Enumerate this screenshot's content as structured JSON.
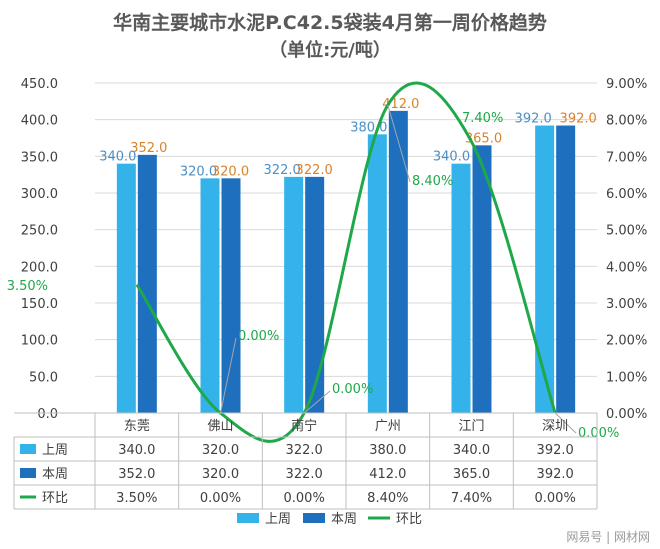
{
  "chart_data": {
    "type": "bar",
    "title": "华南主要城市水泥P.C42.5袋装4月第一周价格趋势",
    "subtitle": "（单位:元/吨）",
    "categories": [
      "东莞",
      "佛山",
      "南宁",
      "广州",
      "江门",
      "深圳"
    ],
    "series": [
      {
        "name": "上周",
        "type": "bar",
        "axis": "left",
        "color": "#33b3ea",
        "values": [
          340.0,
          320.0,
          322.0,
          380.0,
          340.0,
          392.0
        ],
        "labels": [
          "340.0",
          "320.0",
          "322.0",
          "380.0",
          "340.0",
          "392.0"
        ]
      },
      {
        "name": "本周",
        "type": "bar",
        "axis": "left",
        "color": "#1f6fbf",
        "values": [
          352.0,
          320.0,
          322.0,
          412.0,
          365.0,
          392.0
        ],
        "labels": [
          "352.0",
          "320.0",
          "322.0",
          "412.0",
          "365.0",
          "392.0"
        ]
      },
      {
        "name": "环比",
        "type": "line",
        "axis": "right",
        "color": "#1fa84a",
        "values": [
          3.5,
          0.0,
          0.0,
          8.4,
          7.4,
          0.0
        ],
        "labels": [
          "3.50%",
          "0.00%",
          "0.00%",
          "8.40%",
          "7.40%",
          "0.00%"
        ]
      }
    ],
    "y_left": {
      "min": 0,
      "max": 450,
      "ticks": [
        "0.0",
        "50.0",
        "100.0",
        "150.0",
        "200.0",
        "250.0",
        "300.0",
        "350.0",
        "400.0",
        "450.0"
      ]
    },
    "y_right": {
      "min": 0,
      "max": 9,
      "ticks": [
        "0.00%",
        "1.00%",
        "2.00%",
        "3.00%",
        "4.00%",
        "5.00%",
        "6.00%",
        "7.00%",
        "8.00%",
        "9.00%"
      ]
    },
    "grid": true,
    "data_table": true,
    "legend": "bottom"
  },
  "watermark": {
    "text": "网易号 | 网材网"
  }
}
